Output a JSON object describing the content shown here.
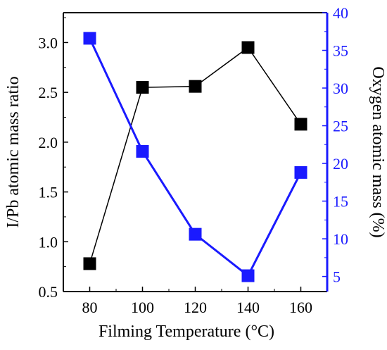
{
  "chart_data": {
    "type": "line",
    "xlabel": "Filming Temperature (°C)",
    "y_left_label": "I/Pb atomic mass ratio",
    "y_right_label": "Oxygen atomic mass (%)",
    "x": [
      80,
      100,
      120,
      140,
      160
    ],
    "x_ticks": [
      80,
      100,
      120,
      140,
      160
    ],
    "xlim": [
      70,
      170
    ],
    "y_left_lim": [
      0.5,
      3.3
    ],
    "y_left_ticks": [
      "0.5",
      "1.0",
      "1.5",
      "2.0",
      "2.5",
      "3.0"
    ],
    "y_right_lim": [
      3,
      40
    ],
    "y_right_ticks": [
      "5",
      "10",
      "15",
      "20",
      "25",
      "30",
      "35",
      "40"
    ],
    "grid": false,
    "series": [
      {
        "axis": "left",
        "color": "#000000",
        "marker": "square",
        "values": [
          0.78,
          2.55,
          2.56,
          2.95,
          2.18
        ]
      },
      {
        "axis": "right",
        "color": "#1a1aff",
        "marker": "square",
        "values": [
          36.6,
          21.6,
          10.6,
          5.1,
          18.8
        ]
      }
    ]
  }
}
